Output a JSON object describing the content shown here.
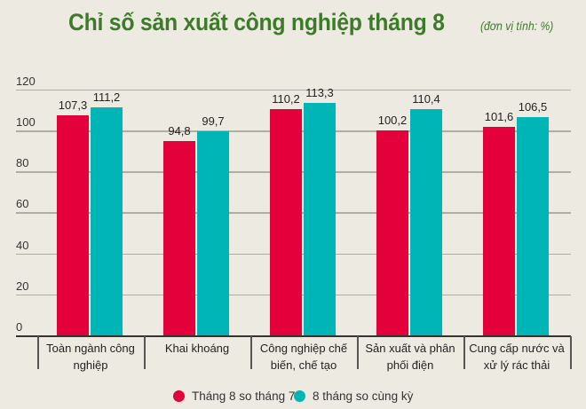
{
  "title": "Chỉ số sản xuất công nghiệp tháng 8",
  "unit_note": "(đơn vị tính: %)",
  "colors": {
    "background": "#edebe1",
    "title": "#3d7a2a",
    "series_1": "#e4003a",
    "series_2": "#00b5b5"
  },
  "legend": {
    "items": [
      {
        "label": "Tháng 8 so tháng 7",
        "color": "#e4003a"
      },
      {
        "label": "8 tháng so cùng kỳ",
        "color": "#00b5b5"
      }
    ]
  },
  "y_axis": {
    "ticks": [
      "0",
      "20",
      "40",
      "60",
      "80",
      "100",
      "120"
    ]
  },
  "categories": [
    {
      "label": "Toàn ngành công nghiệp",
      "v1": "107,3",
      "v2": "111,2"
    },
    {
      "label": "Khai khoáng",
      "v1": "94,8",
      "v2": "99,7"
    },
    {
      "label": "Công nghiệp chế biến, chế tạo",
      "v1": "110,2",
      "v2": "113,3"
    },
    {
      "label": "Sản xuất và phân phối điện",
      "v1": "100,2",
      "v2": "110,4"
    },
    {
      "label": "Cung cấp nước và xử lý rác thải",
      "v1": "101,6",
      "v2": "106,5"
    }
  ],
  "chart_data": {
    "type": "bar",
    "title": "Chỉ số sản xuất công nghiệp tháng 8",
    "subtitle": "(đơn vị tính: %)",
    "categories": [
      "Toàn ngành công nghiệp",
      "Khai khoáng",
      "Công nghiệp chế biến, chế tạo",
      "Sản xuất và phân phối điện",
      "Cung cấp nước và xử lý rác thải"
    ],
    "series": [
      {
        "name": "Tháng 8 so tháng 7",
        "color": "#e4003a",
        "values": [
          107.3,
          94.8,
          110.2,
          100.2,
          101.6
        ]
      },
      {
        "name": "8 tháng so cùng kỳ",
        "color": "#00b5b5",
        "values": [
          111.2,
          99.7,
          113.3,
          110.4,
          106.5
        ]
      }
    ],
    "xlabel": "",
    "ylabel": "",
    "ylim": [
      0,
      120
    ],
    "yticks": [
      0,
      20,
      40,
      60,
      80,
      100,
      120
    ],
    "grid": true,
    "legend_position": "bottom",
    "data_labels": true
  }
}
